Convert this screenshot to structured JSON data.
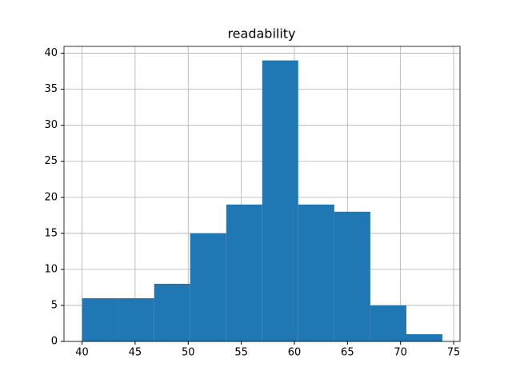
{
  "chart_data": {
    "type": "histogram",
    "title": "readability",
    "bins": [
      40,
      43.39,
      46.79,
      50.18,
      53.58,
      56.97,
      60.36,
      63.76,
      67.15,
      70.55,
      73.94
    ],
    "counts": [
      6,
      6,
      8,
      15,
      19,
      39,
      19,
      18,
      5,
      1
    ],
    "color": "#1f77b4",
    "xlim": [
      38.3,
      75.6
    ],
    "ylim": [
      0,
      40.95
    ],
    "xticks": [
      40,
      45,
      50,
      55,
      60,
      65,
      70,
      75
    ],
    "yticks": [
      0,
      5,
      10,
      15,
      20,
      25,
      30,
      35,
      40
    ],
    "grid": true
  }
}
